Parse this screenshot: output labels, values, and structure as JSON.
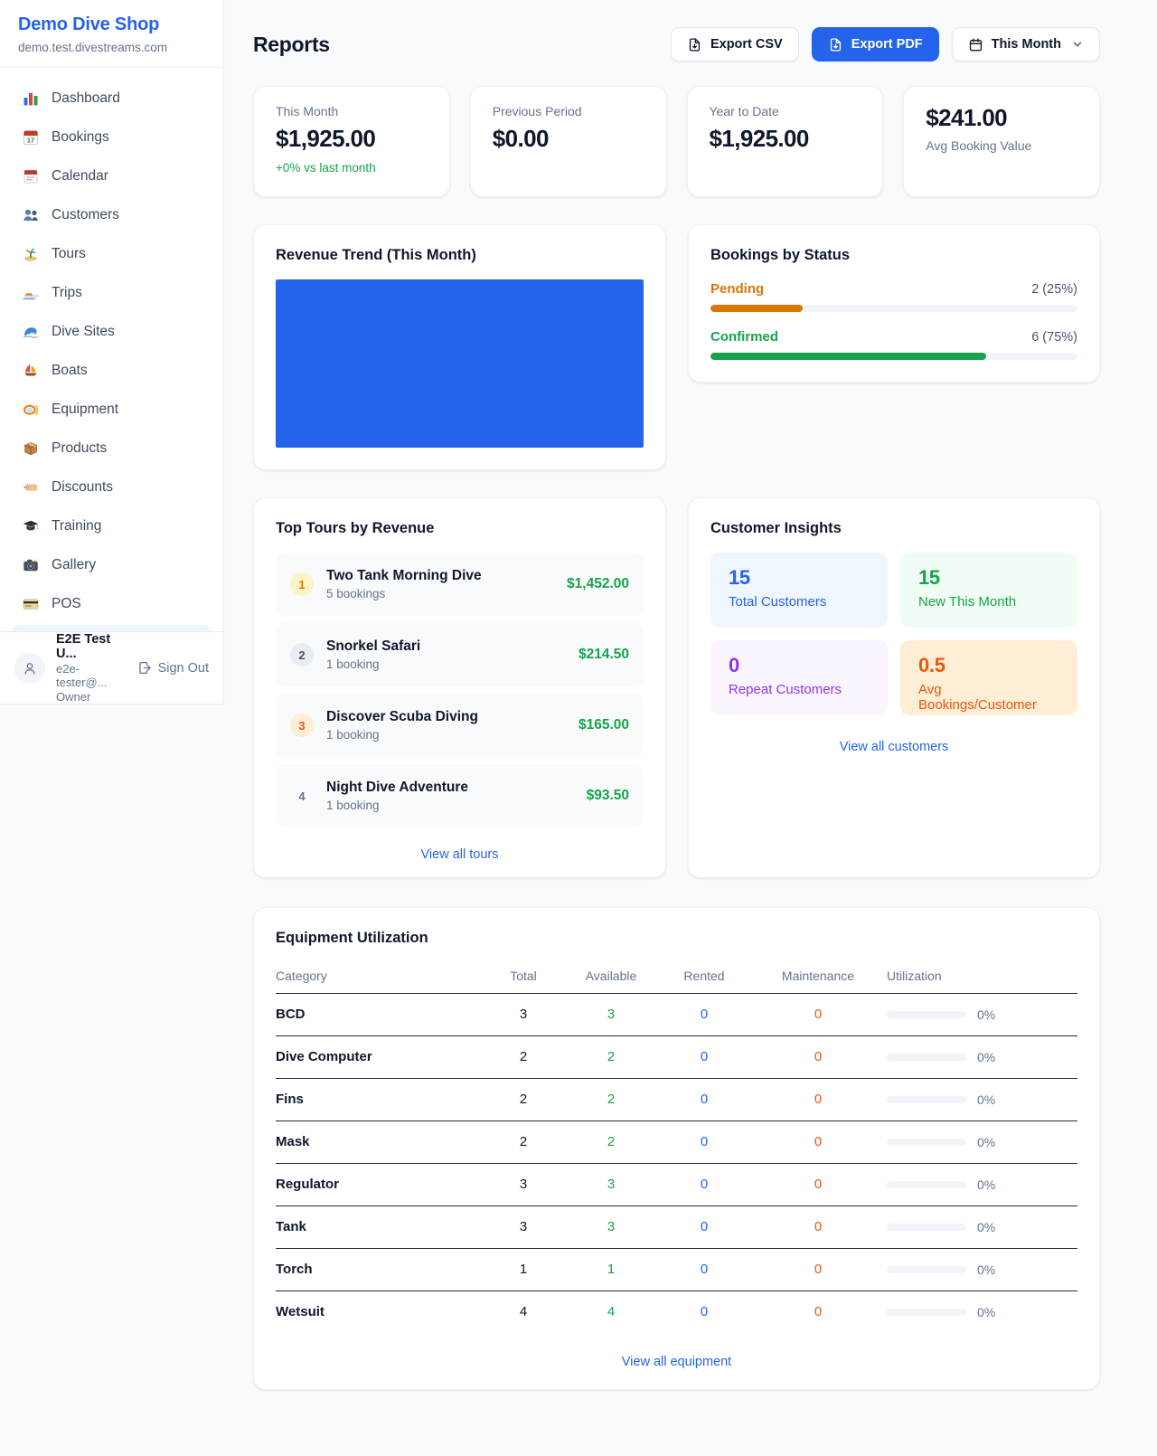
{
  "app": {
    "name": "Demo Dive Shop",
    "domain": "demo.test.divestreams.com"
  },
  "colors": {
    "accent": "#2563eb",
    "green": "#16a34a",
    "orange": "#d97706",
    "deep_orange": "#ea580c",
    "purple": "#9333ea",
    "bg": "#f8fafc"
  },
  "sidebar": {
    "items": [
      {
        "label": "Dashboard",
        "icon": "bar-chart"
      },
      {
        "label": "Bookings",
        "icon": "calendar-17"
      },
      {
        "label": "Calendar",
        "icon": "calendar-pad"
      },
      {
        "label": "Customers",
        "icon": "people"
      },
      {
        "label": "Tours",
        "icon": "island"
      },
      {
        "label": "Trips",
        "icon": "speedboat"
      },
      {
        "label": "Dive Sites",
        "icon": "wave"
      },
      {
        "label": "Boats",
        "icon": "sailboat"
      },
      {
        "label": "Equipment",
        "icon": "dive-mask"
      },
      {
        "label": "Products",
        "icon": "package"
      },
      {
        "label": "Discounts",
        "icon": "tag"
      },
      {
        "label": "Training",
        "icon": "grad-cap"
      },
      {
        "label": "Gallery",
        "icon": "camera"
      },
      {
        "label": "POS",
        "icon": "credit-card"
      }
    ],
    "user": {
      "name": "E2E Test U...",
      "email": "e2e-tester@...",
      "role": "Owner",
      "sign_out": "Sign Out"
    }
  },
  "header": {
    "title": "Reports",
    "export_csv": "Export CSV",
    "export_pdf": "Export PDF",
    "period": "This Month"
  },
  "stats": {
    "cards": [
      {
        "label": "This Month",
        "value": "$1,925.00",
        "delta": "+0% vs last month"
      },
      {
        "label": "Previous Period",
        "value": "$0.00",
        "delta": ""
      },
      {
        "label": "Year to Date",
        "value": "$1,925.00",
        "delta": ""
      }
    ],
    "avg": {
      "value": "$241.00",
      "label": "Avg Booking Value"
    }
  },
  "revenue_trend": {
    "title": "Revenue Trend (This Month)",
    "fill_color": "#2563eb",
    "fill_pct": "100%"
  },
  "bookings_by_status": {
    "title": "Bookings by Status",
    "rows": [
      {
        "label": "Pending",
        "count": "2 (25%)",
        "color": "#d97706",
        "width": "25%"
      },
      {
        "label": "Confirmed",
        "count": "6 (75%)",
        "color": "#16a34a",
        "width": "75%"
      }
    ]
  },
  "top_tours": {
    "title": "Top Tours by Revenue",
    "rows": [
      {
        "rank": "1",
        "name": "Two Tank Morning Dive",
        "bookings": "5 bookings",
        "amount": "$1,452.00",
        "badge_bg": "#fef3c7",
        "badge_fg": "#d97706"
      },
      {
        "rank": "2",
        "name": "Snorkel Safari",
        "bookings": "1 booking",
        "amount": "$214.50",
        "badge_bg": "#e8edf3",
        "badge_fg": "#475569"
      },
      {
        "rank": "3",
        "name": "Discover Scuba Diving",
        "bookings": "1 booking",
        "amount": "$165.00",
        "badge_bg": "#ffedd5",
        "badge_fg": "#ea580c"
      },
      {
        "rank": "4",
        "name": "Night Dive Adventure",
        "bookings": "1 booking",
        "amount": "$93.50",
        "badge_bg": "transparent",
        "badge_fg": "#64748b"
      }
    ],
    "view_all": "View all tours"
  },
  "customer_insights": {
    "title": "Customer Insights",
    "tiles": [
      {
        "value": "15",
        "label": "Total Customers",
        "bg": "#eff6ff",
        "fg": "#2563eb"
      },
      {
        "value": "15",
        "label": "New This Month",
        "bg": "#f0fdf4",
        "fg": "#16a34a"
      },
      {
        "value": "0",
        "label": "Repeat Customers",
        "bg": "#faf5ff",
        "fg": "#9333ea"
      },
      {
        "value": "0.5",
        "label": "Avg Bookings/Customer",
        "bg": "#ffedd5",
        "fg": "#ea580c"
      }
    ],
    "view_all": "View all customers"
  },
  "equipment": {
    "title": "Equipment Utilization",
    "columns": {
      "category": "Category",
      "total": "Total",
      "available": "Available",
      "rented": "Rented",
      "maintenance": "Maintenance",
      "utilization": "Utilization"
    },
    "rows": [
      {
        "category": "BCD",
        "total": "3",
        "available": "3",
        "rented": "0",
        "maintenance": "0",
        "utilization": "0%",
        "bar": "0%"
      },
      {
        "category": "Dive Computer",
        "total": "2",
        "available": "2",
        "rented": "0",
        "maintenance": "0",
        "utilization": "0%",
        "bar": "0%"
      },
      {
        "category": "Fins",
        "total": "2",
        "available": "2",
        "rented": "0",
        "maintenance": "0",
        "utilization": "0%",
        "bar": "0%"
      },
      {
        "category": "Mask",
        "total": "2",
        "available": "2",
        "rented": "0",
        "maintenance": "0",
        "utilization": "0%",
        "bar": "0%"
      },
      {
        "category": "Regulator",
        "total": "3",
        "available": "3",
        "rented": "0",
        "maintenance": "0",
        "utilization": "0%",
        "bar": "0%"
      },
      {
        "category": "Tank",
        "total": "3",
        "available": "3",
        "rented": "0",
        "maintenance": "0",
        "utilization": "0%",
        "bar": "0%"
      },
      {
        "category": "Torch",
        "total": "1",
        "available": "1",
        "rented": "0",
        "maintenance": "0",
        "utilization": "0%",
        "bar": "0%"
      },
      {
        "category": "Wetsuit",
        "total": "4",
        "available": "4",
        "rented": "0",
        "maintenance": "0",
        "utilization": "0%",
        "bar": "0%"
      }
    ],
    "view_all": "View all equipment"
  }
}
